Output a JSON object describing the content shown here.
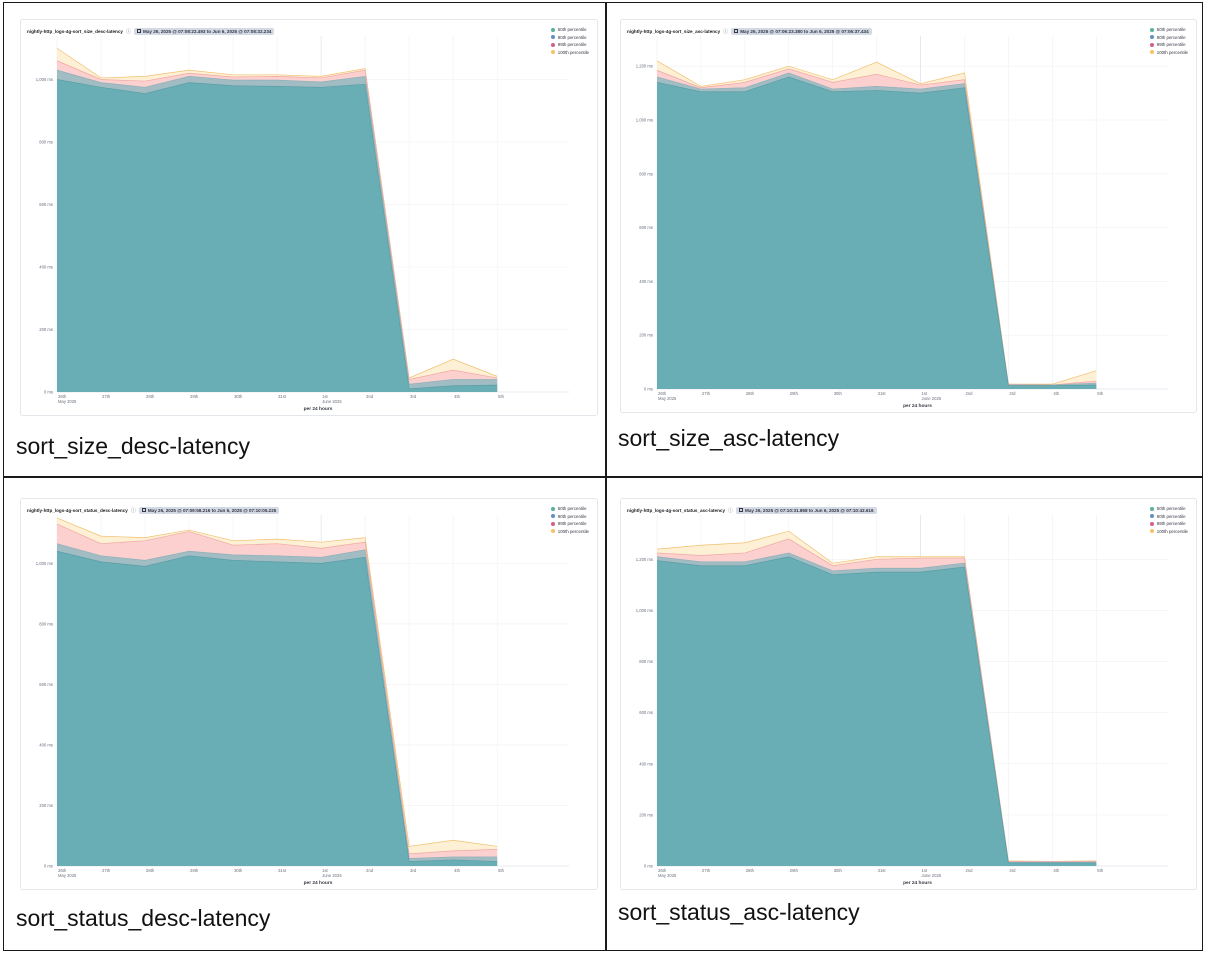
{
  "layout_note": "",
  "chart_data": [
    {
      "type": "area",
      "panel_title": "nightly-http_logs-4g-sort_size_desc-latency",
      "time_range": "May 26, 2025 @ 07:08:22.493 to Jun 6, 2025 @ 07:08:32.234",
      "caption": "sort_size_desc-latency",
      "x_ticks": [
        "26th\nMay 2025",
        "27th",
        "28th",
        "29th",
        "30th",
        "31st",
        "1st\nJune 2025",
        "2nd",
        "3rd",
        "4th",
        "5th"
      ],
      "xlabel": "per 24 hours",
      "y_ticks": [
        "0 ms",
        "200 ms",
        "400 ms",
        "600 ms",
        "800 ms",
        "1,000 ms"
      ],
      "ylim": [
        0,
        1120
      ],
      "series": [
        {
          "name": "50th percentile",
          "values": [
            1000,
            975,
            955,
            990,
            980,
            978,
            975,
            985,
            10,
            20,
            22
          ]
        },
        {
          "name": "90th percentile",
          "values": [
            1030,
            990,
            975,
            1010,
            998,
            998,
            992,
            1010,
            25,
            40,
            40
          ]
        },
        {
          "name": "99th percentile",
          "values": [
            1060,
            1000,
            995,
            1020,
            1008,
            1010,
            1005,
            1030,
            40,
            70,
            45
          ]
        },
        {
          "name": "100th percentile",
          "values": [
            1100,
            1005,
            1010,
            1030,
            1015,
            1015,
            1010,
            1035,
            45,
            105,
            50
          ]
        }
      ]
    },
    {
      "type": "area",
      "panel_title": "nightly-http_logs-4g-sort_size_asc-latency",
      "time_range": "May 26, 2025 @ 07:06:23.380 to Jun 6, 2025 @ 07:06:37.434",
      "caption": "sort_size_asc-latency",
      "x_ticks": [
        "26th\nMay 2025",
        "27th",
        "28th",
        "29th",
        "30th",
        "31st",
        "1st\nJune 2025",
        "2nd",
        "3rd",
        "4th",
        "5th"
      ],
      "xlabel": "per 24 hours",
      "y_ticks": [
        "0 ms",
        "200 ms",
        "400 ms",
        "600 ms",
        "800 ms",
        "1,000 ms",
        "1,200 ms"
      ],
      "ylim": [
        0,
        1290
      ],
      "series": [
        {
          "name": "50th percentile",
          "values": [
            1140,
            1105,
            1105,
            1160,
            1105,
            1110,
            1100,
            1120,
            12,
            12,
            15
          ]
        },
        {
          "name": "90th percentile",
          "values": [
            1160,
            1115,
            1120,
            1175,
            1115,
            1125,
            1115,
            1135,
            15,
            15,
            22
          ]
        },
        {
          "name": "99th percentile",
          "values": [
            1185,
            1120,
            1140,
            1190,
            1140,
            1170,
            1130,
            1150,
            18,
            15,
            30
          ]
        },
        {
          "name": "100th percentile",
          "values": [
            1220,
            1125,
            1150,
            1200,
            1150,
            1215,
            1135,
            1175,
            18,
            18,
            68
          ]
        }
      ]
    },
    {
      "type": "area",
      "panel_title": "nightly-http_logs-4g-sort_status_desc-latency",
      "time_range": "May 26, 2025 @ 07:09:58.216 to Jun 6, 2025 @ 07:10:05.225",
      "caption": "sort_status_desc-latency",
      "x_ticks": [
        "26th\nMay 2025",
        "27th",
        "28th",
        "29th",
        "30th",
        "31st",
        "1st\nJune 2025",
        "2nd",
        "3rd",
        "4th",
        "5th"
      ],
      "xlabel": "per 24 hours",
      "y_ticks": [
        "0 ms",
        "200 ms",
        "400 ms",
        "600 ms",
        "800 ms",
        "1,000 ms"
      ],
      "ylim": [
        0,
        1140
      ],
      "series": [
        {
          "name": "50th percentile",
          "values": [
            1040,
            1005,
            990,
            1025,
            1010,
            1005,
            1000,
            1020,
            15,
            20,
            15
          ]
        },
        {
          "name": "90th percentile",
          "values": [
            1065,
            1025,
            1010,
            1040,
            1028,
            1025,
            1020,
            1045,
            25,
            30,
            30
          ]
        },
        {
          "name": "99th percentile",
          "values": [
            1130,
            1065,
            1075,
            1105,
            1060,
            1065,
            1050,
            1070,
            40,
            50,
            55
          ]
        },
        {
          "name": "100th percentile",
          "values": [
            1150,
            1090,
            1085,
            1110,
            1075,
            1080,
            1070,
            1085,
            65,
            85,
            65
          ]
        }
      ]
    },
    {
      "type": "area",
      "panel_title": "nightly-http_logs-4g-sort_status_asc-latency",
      "time_range": "May 26, 2025 @ 07:10:31.868 to Jun 6, 2025 @ 07:10:43.616",
      "caption": "sort_status_asc-latency",
      "x_ticks": [
        "26th\nMay 2025",
        "27th",
        "28th",
        "29th",
        "30th",
        "31st",
        "1st\nJune 2025",
        "2nd",
        "3rd",
        "4th",
        "5th"
      ],
      "xlabel": "per 24 hours",
      "y_ticks": [
        "0 ms",
        "200 ms",
        "400 ms",
        "600 ms",
        "800 ms",
        "1,000 ms",
        "1,200 ms"
      ],
      "ylim": [
        0,
        1350
      ],
      "series": [
        {
          "name": "50th percentile",
          "values": [
            1195,
            1175,
            1175,
            1210,
            1140,
            1150,
            1150,
            1170,
            12,
            12,
            12
          ]
        },
        {
          "name": "90th percentile",
          "values": [
            1210,
            1190,
            1190,
            1225,
            1155,
            1165,
            1165,
            1185,
            15,
            15,
            15
          ]
        },
        {
          "name": "99th percentile",
          "values": [
            1225,
            1215,
            1225,
            1280,
            1175,
            1200,
            1205,
            1205,
            18,
            18,
            18
          ]
        },
        {
          "name": "100th percentile",
          "values": [
            1240,
            1255,
            1265,
            1310,
            1185,
            1210,
            1210,
            1210,
            20,
            18,
            20
          ]
        }
      ]
    }
  ],
  "colors": {
    "p50": "#6aaeb5",
    "p90": "#a2bcc4",
    "p99": "#fbd0ce",
    "p100": "#fdf0d5",
    "p100_line": "#f0c070",
    "p99_line": "#f0a8a3"
  }
}
